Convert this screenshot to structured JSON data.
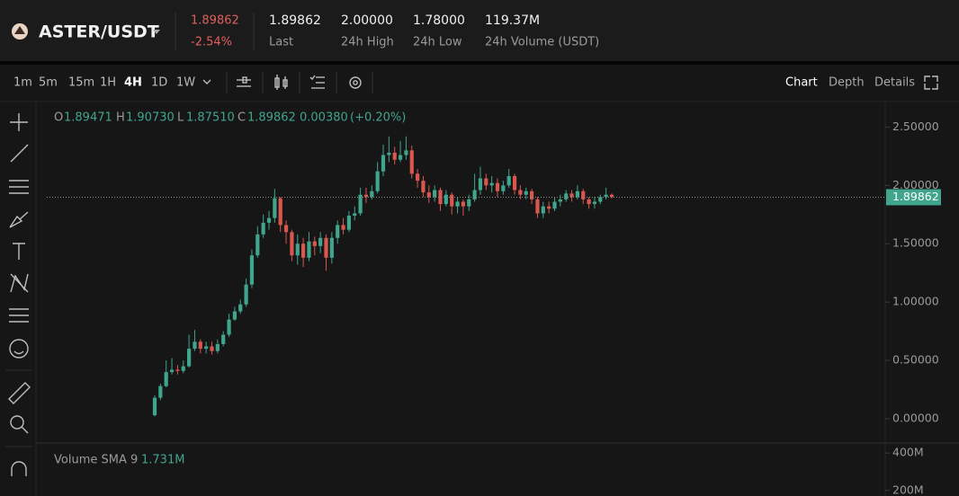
{
  "header": {
    "pair": "ASTER/USDT",
    "price": "1.89862",
    "change": "-2.54%",
    "stats": [
      {
        "value": "1.89862",
        "label": "Last"
      },
      {
        "value": "2.00000",
        "label": "24h High"
      },
      {
        "value": "1.78000",
        "label": "24h Low"
      },
      {
        "value": "119.37M",
        "label": "24h Volume (USDT)"
      }
    ]
  },
  "toolbar": {
    "intervals": [
      "1m",
      "5m",
      "15m",
      "1H",
      "4H",
      "1D",
      "1W"
    ],
    "active_interval": 4,
    "tabs": [
      "Chart",
      "Depth",
      "Details"
    ]
  },
  "chart_data": {
    "type": "candlestick",
    "legend": {
      "o_label": "O",
      "o": "1.89471",
      "h_label": "H",
      "h": "1.90730",
      "l_label": "L",
      "l": "1.87510",
      "c_label": "C",
      "c": "1.89862",
      "change": "0.00380",
      "change_pct": "(+0.20%)"
    },
    "up_color": "#3fa58c",
    "down_color": "#d9574f",
    "open": [
      0.03,
      0.18,
      0.28,
      0.4,
      0.42,
      0.41,
      0.45,
      0.6,
      0.66,
      0.6,
      0.62,
      0.58,
      0.64,
      0.72,
      0.85,
      0.92,
      0.98,
      1.15,
      1.4,
      1.58,
      1.68,
      1.72,
      1.89,
      1.66,
      1.6,
      1.4,
      1.5,
      1.38,
      1.52,
      1.48,
      1.55,
      1.38,
      1.55,
      1.66,
      1.62,
      1.74,
      1.76,
      1.92,
      1.9,
      1.95,
      2.12,
      2.26,
      2.28,
      2.22,
      2.26,
      2.3,
      2.1,
      2.04,
      1.94,
      1.9,
      1.96,
      1.84,
      1.92,
      1.82,
      1.86,
      1.82,
      1.88,
      1.96,
      2.06,
      2.0,
      2.02,
      1.95,
      2.0,
      2.08,
      1.96,
      1.92,
      1.95,
      1.88,
      1.76,
      1.82,
      1.8,
      1.86,
      1.88,
      1.93,
      1.9,
      1.95,
      1.88,
      1.84,
      1.86,
      1.9,
      1.92
    ],
    "high": [
      0.2,
      0.3,
      0.5,
      0.52,
      0.46,
      0.5,
      0.72,
      0.76,
      0.68,
      0.66,
      0.66,
      0.68,
      0.75,
      0.9,
      0.96,
      1.02,
      1.2,
      1.45,
      1.65,
      1.75,
      1.78,
      1.97,
      1.9,
      1.7,
      1.62,
      1.58,
      1.55,
      1.6,
      1.56,
      1.6,
      1.58,
      1.6,
      1.7,
      1.72,
      1.78,
      1.82,
      1.98,
      1.98,
      2.0,
      2.2,
      2.35,
      2.42,
      2.33,
      2.38,
      2.42,
      2.34,
      2.14,
      2.08,
      2.0,
      2.0,
      1.98,
      1.96,
      1.94,
      1.9,
      1.88,
      1.92,
      2.1,
      2.16,
      2.1,
      2.08,
      2.06,
      2.04,
      2.14,
      2.1,
      2.0,
      1.98,
      1.97,
      1.9,
      1.86,
      1.86,
      1.9,
      1.92,
      1.96,
      1.96,
      2.0,
      1.97,
      1.9,
      1.9,
      1.92,
      1.98,
      1.93
    ],
    "low": [
      0.02,
      0.16,
      0.27,
      0.38,
      0.38,
      0.39,
      0.44,
      0.58,
      0.56,
      0.56,
      0.55,
      0.56,
      0.62,
      0.7,
      0.84,
      0.9,
      0.96,
      1.12,
      1.38,
      1.55,
      1.62,
      1.68,
      1.6,
      1.5,
      1.35,
      1.32,
      1.3,
      1.35,
      1.4,
      1.42,
      1.27,
      1.33,
      1.5,
      1.58,
      1.6,
      1.7,
      1.74,
      1.85,
      1.88,
      1.93,
      2.08,
      2.2,
      2.18,
      2.2,
      2.22,
      2.06,
      1.98,
      1.9,
      1.85,
      1.86,
      1.78,
      1.82,
      1.75,
      1.76,
      1.74,
      1.78,
      1.86,
      1.92,
      1.96,
      1.94,
      1.9,
      1.92,
      1.98,
      1.92,
      1.88,
      1.88,
      1.84,
      1.72,
      1.72,
      1.76,
      1.78,
      1.82,
      1.86,
      1.86,
      1.88,
      1.84,
      1.8,
      1.8,
      1.84,
      1.88,
      1.89
    ],
    "close": [
      0.18,
      0.28,
      0.4,
      0.42,
      0.41,
      0.45,
      0.6,
      0.66,
      0.6,
      0.62,
      0.58,
      0.64,
      0.72,
      0.85,
      0.92,
      0.98,
      1.15,
      1.4,
      1.58,
      1.68,
      1.72,
      1.89,
      1.66,
      1.6,
      1.4,
      1.5,
      1.38,
      1.52,
      1.48,
      1.55,
      1.38,
      1.55,
      1.66,
      1.62,
      1.74,
      1.76,
      1.92,
      1.9,
      1.95,
      2.12,
      2.26,
      2.28,
      2.22,
      2.26,
      2.3,
      2.1,
      2.04,
      1.94,
      1.9,
      1.96,
      1.84,
      1.92,
      1.82,
      1.86,
      1.82,
      1.88,
      1.96,
      2.06,
      2.0,
      2.02,
      1.95,
      2.0,
      2.08,
      1.96,
      1.92,
      1.95,
      1.88,
      1.76,
      1.82,
      1.8,
      1.86,
      1.88,
      1.93,
      1.9,
      1.95,
      1.88,
      1.84,
      1.86,
      1.9,
      1.92,
      1.9
    ],
    "last_price": 1.89862,
    "ylim": [
      -0.2,
      2.68
    ],
    "yticks": [
      {
        "value": 2.5,
        "label": "2.50000"
      },
      {
        "value": 2,
        "label": "2.00000"
      },
      {
        "value": 1.5,
        "label": "1.50000"
      },
      {
        "value": 1,
        "label": "1.00000"
      },
      {
        "value": 0.5,
        "label": "0.50000"
      },
      {
        "value": 0,
        "label": "0.00000"
      }
    ],
    "volume": {
      "title": "Volume SMA 9",
      "value": "1.731M",
      "ylim": [
        170000000,
        449000000
      ],
      "yticks": [
        {
          "value": 400000000,
          "label": "400M"
        },
        {
          "value": 200000000,
          "label": "200M"
        }
      ]
    }
  }
}
